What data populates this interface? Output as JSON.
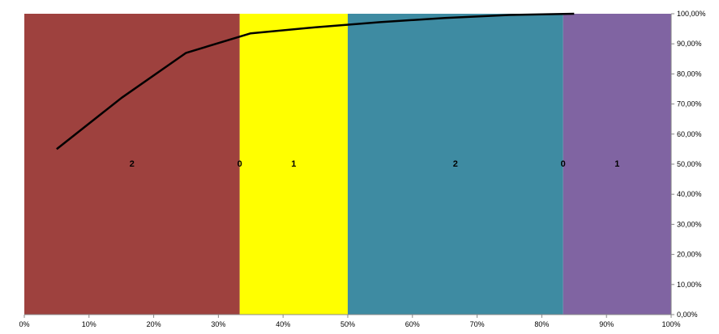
{
  "chart_data": {
    "type": "area",
    "title": "",
    "xlabel": "",
    "ylabel": "",
    "xlim": [
      0,
      100
    ],
    "ylim": [
      0,
      100
    ],
    "x_tick_labels": [
      "0%",
      "10%",
      "20%",
      "30%",
      "40%",
      "50%",
      "60%",
      "70%",
      "80%",
      "90%",
      "100%"
    ],
    "y_tick_labels": [
      "0,00%",
      "10,00%",
      "20,00%",
      "30,00%",
      "40,00%",
      "50,00%",
      "60,00%",
      "70,00%",
      "80,00%",
      "90,00%",
      "100,00%"
    ],
    "grid": false,
    "legend": "none",
    "segments": [
      {
        "x_start": 0,
        "x_end": 33.3,
        "label": "2",
        "color": "#9E413E"
      },
      {
        "x_start": 33.3,
        "x_end": 33.3,
        "label": "0",
        "color": "#9E413E"
      },
      {
        "x_start": 33.3,
        "x_end": 50,
        "label": "1",
        "color": "#FFFF00"
      },
      {
        "x_start": 50,
        "x_end": 83.3,
        "label": "2",
        "color": "#3E8BA2"
      },
      {
        "x_start": 83.3,
        "x_end": 83.3,
        "label": "0",
        "color": "#3E8BA2"
      },
      {
        "x_start": 83.3,
        "x_end": 100,
        "label": "1",
        "color": "#8064A2"
      }
    ],
    "line": {
      "color": "#000000",
      "points": [
        {
          "x": 5,
          "y": 55
        },
        {
          "x": 15,
          "y": 72
        },
        {
          "x": 25,
          "y": 87
        },
        {
          "x": 35,
          "y": 93.5
        },
        {
          "x": 45,
          "y": 95.5
        },
        {
          "x": 55,
          "y": 97.2
        },
        {
          "x": 65,
          "y": 98.6
        },
        {
          "x": 75,
          "y": 99.6
        },
        {
          "x": 85,
          "y": 100
        }
      ]
    }
  }
}
